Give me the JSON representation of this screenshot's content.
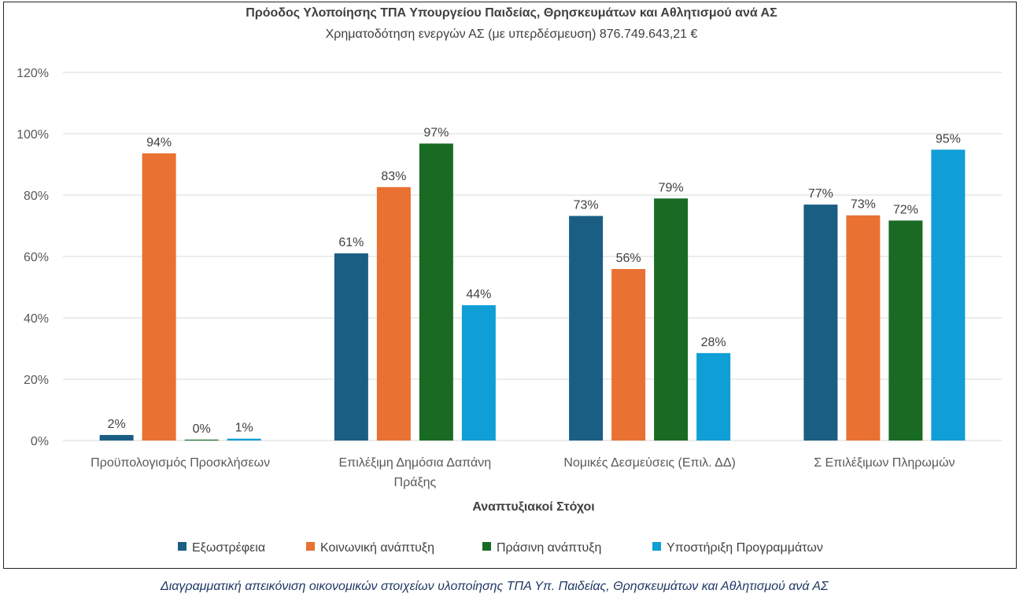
{
  "caption": "Διαγραμματική απεικόνιση οικονομικών στοιχείων υλοποίησης ΤΠΑ Υπ. Παιδείας, Θρησκευμάτων και Αθλητισμού ανά ΑΣ",
  "chart_data": {
    "type": "bar",
    "title": "Πρόοδος Υλοποίησης ΤΠΑ Υπουργείου Παιδείας, Θρησκευμάτων και Αθλητισμού ανά ΑΣ",
    "subtitle": "Χρηματοδότηση ενεργών ΑΣ (με υπερδέσμευση) 876.749.643,21 €",
    "xlabel": "Αναπτυξιακοί Στόχοι",
    "ylabel": "",
    "ylim": [
      0,
      120
    ],
    "yticks": [
      0,
      20,
      40,
      60,
      80,
      100,
      120
    ],
    "ytick_labels": [
      "0%",
      "20%",
      "40%",
      "60%",
      "80%",
      "100%",
      "120%"
    ],
    "grid": true,
    "legend_position": "bottom",
    "categories": [
      [
        "Προϋπολογισμός Προσκλήσεων"
      ],
      [
        "Επιλέξιμη Δημόσια Δαπάνη",
        "Πράξης"
      ],
      [
        "Νομικές Δεσμεύσεις (Επιλ. ΔΔ)"
      ],
      [
        "Σ Επιλέξιμων Πληρωμών"
      ]
    ],
    "series": [
      {
        "name": "Εξωστρέφεια",
        "color": "#1a5e83",
        "values": [
          1.8,
          61,
          73.2,
          76.9
        ],
        "labels": [
          "2%",
          "61%",
          "73%",
          "77%"
        ]
      },
      {
        "name": "Κοινωνική ανάπτυξη",
        "color": "#e97132",
        "values": [
          93.6,
          82.6,
          55.9,
          73.4
        ],
        "labels": [
          "94%",
          "83%",
          "56%",
          "73%"
        ]
      },
      {
        "name": "Πράσινη ανάπτυξη",
        "color": "#196b24",
        "values": [
          0.3,
          96.8,
          78.9,
          71.7
        ],
        "labels": [
          "0%",
          "97%",
          "79%",
          "72%"
        ]
      },
      {
        "name": "Υποστήριξη Προγραμμάτων",
        "color": "#0f9ed5",
        "values": [
          0.6,
          44.1,
          28.5,
          94.8
        ],
        "labels": [
          "1%",
          "44%",
          "28%",
          "95%"
        ]
      }
    ]
  }
}
